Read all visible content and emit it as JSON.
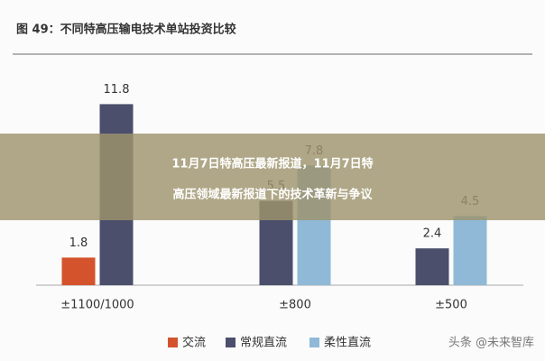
{
  "chart_data": {
    "type": "bar",
    "title": "图 49：不同特高压输电技术单站投资比较",
    "categories": [
      "±1100/1000",
      "±800",
      "±500"
    ],
    "series": [
      {
        "name": "交流",
        "color": "#d4532c",
        "values": [
          1.8,
          null,
          null
        ]
      },
      {
        "name": "常规直流",
        "color": "#4b4f6c",
        "values": [
          11.8,
          5.5,
          2.4
        ]
      },
      {
        "name": "柔性直流",
        "color": "#8fb9d6",
        "values": [
          null,
          7.8,
          4.5
        ]
      }
    ],
    "ylim": [
      0,
      14
    ]
  },
  "banner": {
    "lines": [
      "11月7日特高压最新报道，11月7日特",
      "高压领域最新报道下的技术革新与争议"
    ]
  },
  "watermark": "头条 @未来智库"
}
